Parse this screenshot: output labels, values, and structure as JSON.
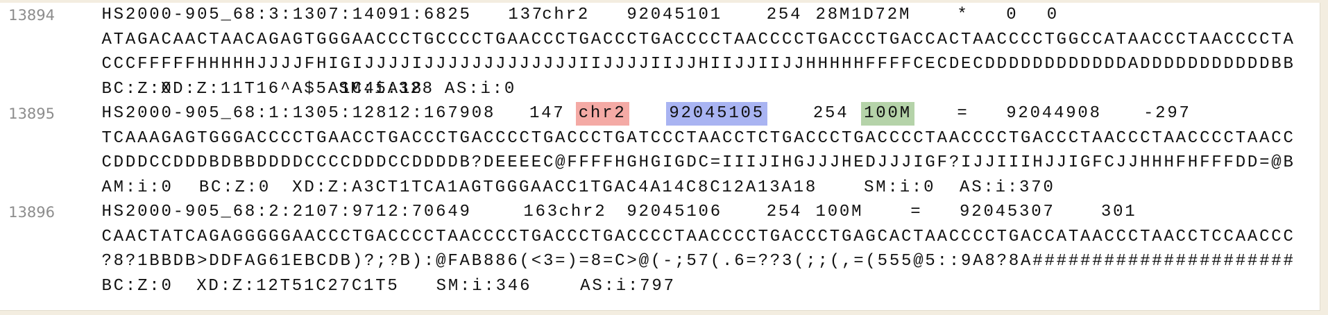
{
  "records": [
    {
      "number": "13894",
      "header": [
        "HS2000-905_68:3:1307:14091:6825",
        "137",
        "chr2",
        "92045101",
        "254",
        "28M1D72M",
        "*",
        "0",
        "0"
      ],
      "header_highlights": [
        null,
        null,
        null,
        null,
        null,
        null,
        null,
        null,
        null
      ],
      "sequence": "ATAGACAACTAACAGAGTGGGAACCCTGCCCCTGAACCCTGACCCTGACCCCTAACCCCTGACCCTGACCACTAACCCCTGGCCATAACCCTAACCCCTA",
      "quality": "CCCFFFFFHHHHHJJJJFHIGIJJJJIJJJJJJJJJJJJJIIJJJJIIJJHIIJJIIJJHHHHHFFFFCECDECDDDDDDDDDDDDADDDDDDDDDDDBB",
      "tags": [
        "BC:Z:0",
        "XD:Z:11T16^A$5A1C45A18",
        "SM:i:328",
        "AS:i:0"
      ]
    },
    {
      "number": "13895",
      "header": [
        "HS2000-905_68:1:1305:12812:167908",
        "147",
        "chr2",
        "92045105",
        "254",
        "100M",
        "=",
        "92044908",
        "-297"
      ],
      "header_highlights": [
        null,
        null,
        "#f4aaa5",
        null,
        null,
        "#b5d3a9",
        null,
        null,
        null
      ],
      "header_highlights_blue": [
        null,
        null,
        null,
        "#a9b4f2",
        null,
        null,
        null,
        null,
        null
      ],
      "sequence": "TCAAAGAGTGGGACCCCTGAACCTGACCCTGACCCCTGACCCTGATCCCTAACCTCTGACCCTGACCCCTAACCCCTGACCCTAACCCTAACCCCTAACC",
      "quality": "CDDDCCDDDBDBBDDDDCCCCDDDCCDDDDB?DEEEEC@FFFFHGHGIGDC=IIIJIHGJJJHEDJJJIGF?IJJIIIHJJIGFCJJHHHFHFFFDD=@B",
      "tags": [
        "AM:i:0",
        "BC:Z:0",
        "XD:Z:A3CT1TCA1AGTGGGAACC1TGAC4A14C8C12A13A18",
        "SM:i:0",
        "AS:i:370"
      ]
    },
    {
      "number": "13896",
      "header": [
        "HS2000-905_68:2:2107:9712:70649",
        "163",
        "chr2",
        "92045106",
        "254",
        "100M",
        "=",
        "92045307",
        "301"
      ],
      "header_highlights": [
        null,
        null,
        null,
        null,
        null,
        null,
        null,
        null,
        null
      ],
      "sequence": "CAACTATCAGAGGGGGAACCCTGACCCCTAACCCCTGACCCTGACCCCTAACCCCTGACCCTGAGCACTAACCCCTGACCATAACCCTAACCTCCAACCC",
      "quality": "?8?1BBDB>DDFAG61EBCDB)?;?B):@FAB886(<3=)=8=C>@(-;57(.6=??3(;;(,=(555@5::9A8?8A######################",
      "tags": [
        "BC:Z:0",
        "XD:Z:12T51C27C1T5",
        "SM:i:346",
        "AS:i:797"
      ]
    }
  ]
}
